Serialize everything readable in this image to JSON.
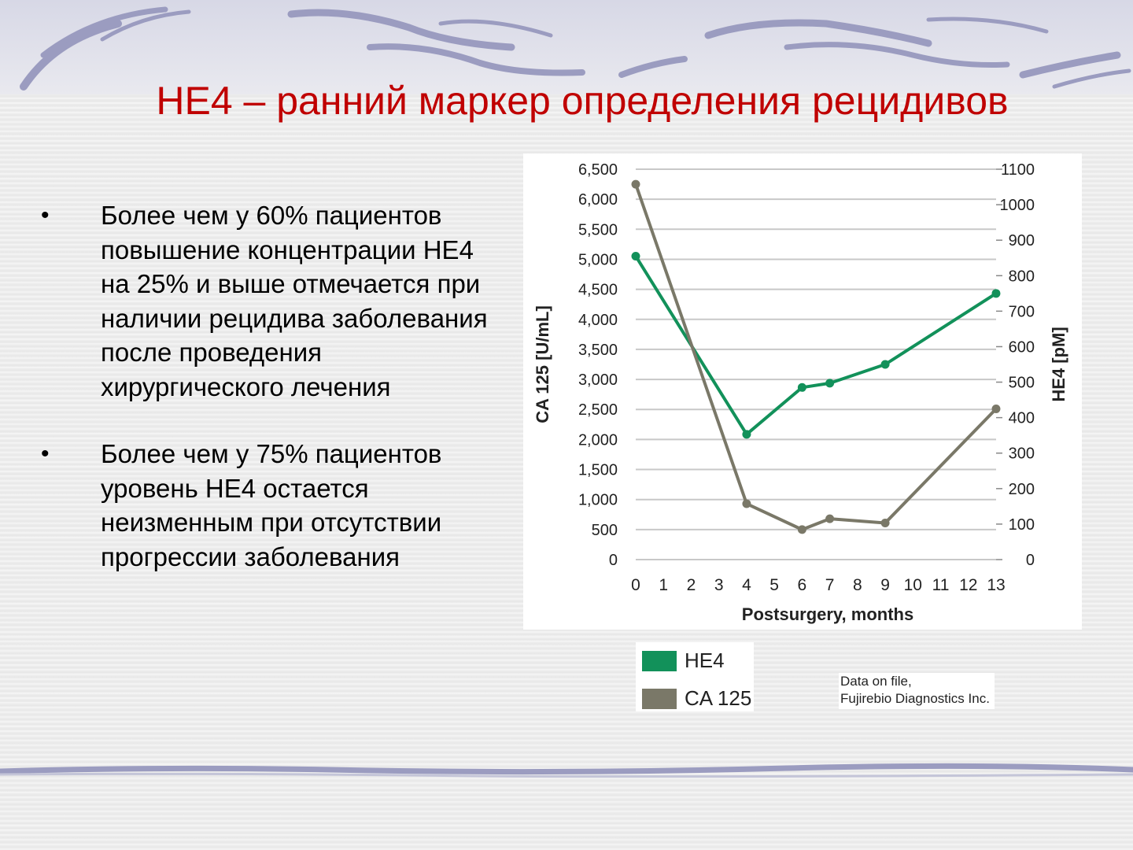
{
  "slide": {
    "title": "HE4 – ранний маркер определения рецидивов",
    "bullets": [
      {
        "marker": "•",
        "text": "Более чем у 60% пациентов\nповышение концентрации HE4\nна 25% и выше отмечается при\nналичии рецидива заболевания\nпосле проведения\nхирургического лечения"
      },
      {
        "marker": "•",
        "text": "Более чем у 75% пациентов\nуровень HE4 остается\nнеизменным при отсутствии\nпрогрессии заболевания"
      }
    ],
    "source_note": [
      "Data on file,",
      "Fujirebio Diagnostics Inc."
    ]
  },
  "chart_data": {
    "type": "line",
    "title": "",
    "xlabel": "Postsurgery, months",
    "ylabel_left": "CA 125 [U/mL]",
    "ylabel_right": "HE4 [pM]",
    "x_ticks": [
      0,
      1,
      2,
      3,
      4,
      5,
      6,
      7,
      8,
      9,
      10,
      11,
      12,
      13
    ],
    "x_lim": [
      0,
      13
    ],
    "y_left_ticks": [
      "0",
      "500",
      "1,000",
      "1,500",
      "2,000",
      "2,500",
      "3,000",
      "3,500",
      "4,000",
      "4,500",
      "5,000",
      "5,500",
      "6,000",
      "6,500"
    ],
    "y_left_lim": [
      0,
      6500
    ],
    "y_right_ticks": [
      "0",
      "100",
      "200",
      "300",
      "400",
      "500",
      "600",
      "700",
      "800",
      "900",
      "1000",
      "1100"
    ],
    "y_right_lim": [
      0,
      1100
    ],
    "grid": true,
    "legend_position": "bottom-left",
    "series": [
      {
        "name": "HE4",
        "axis": "right",
        "color": "#12915a",
        "x": [
          0,
          4,
          6,
          7,
          9,
          13
        ],
        "y": [
          855,
          353,
          485,
          497,
          550,
          750
        ]
      },
      {
        "name": "CA 125",
        "axis": "left",
        "color": "#7a7868",
        "x": [
          0,
          4,
          6,
          7,
          9,
          13
        ],
        "y": [
          6250,
          930,
          500,
          680,
          610,
          2510
        ]
      }
    ]
  }
}
